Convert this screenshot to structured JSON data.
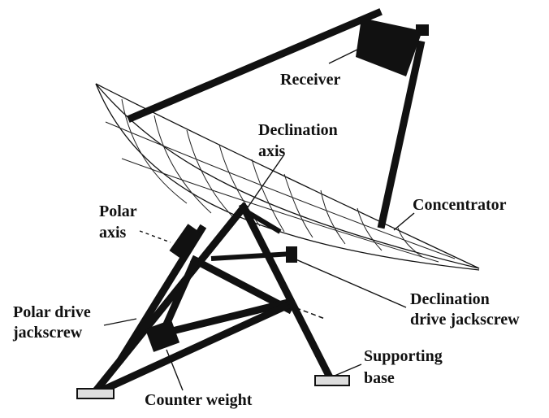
{
  "labels": [
    {
      "lines": [
        "Receiver"
      ]
    },
    {
      "lines": [
        "Declination",
        "axis"
      ]
    },
    {
      "lines": [
        "Concentrator"
      ]
    },
    {
      "lines": [
        "Polar",
        "axis"
      ]
    },
    {
      "lines": [
        "Declination",
        "drive jackscrew"
      ]
    },
    {
      "lines": [
        "Polar drive",
        "jackscrew"
      ]
    },
    {
      "lines": [
        "Supporting",
        "base"
      ]
    },
    {
      "lines": [
        "Counter weight"
      ]
    }
  ]
}
